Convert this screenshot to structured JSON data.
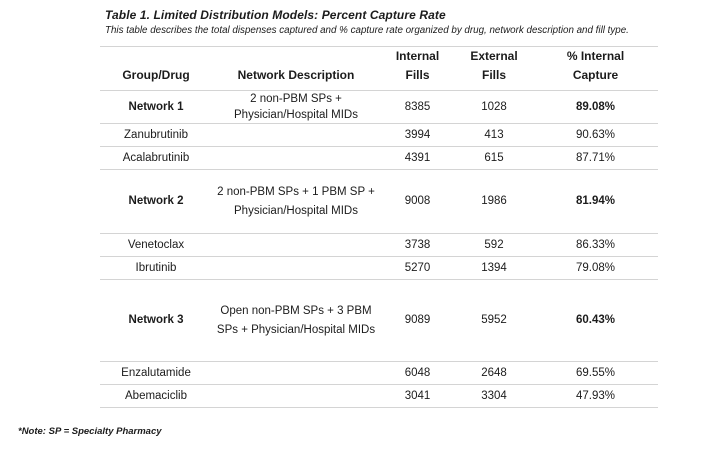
{
  "title": "Table 1. Limited Distribution Models: Percent Capture Rate",
  "subtitle": "This table describes the total dispenses captured and % capture rate organized by drug, network description and fill type.",
  "footnote": "*Note: SP = Specialty Pharmacy",
  "colors": {
    "background": "#ffffff",
    "text": "#1c1c1c",
    "rule_lines": "#d4d4d4"
  },
  "table": {
    "headers": {
      "group": "Group/Drug",
      "description": "Network Description",
      "internal": "Internal\nFills",
      "external": "External\nFills",
      "capture": "% Internal\nCapture"
    },
    "rows": [
      {
        "type": "network",
        "group": "Network 1",
        "description": "2 non-PBM SPs +\nPhysician/Hospital MIDs",
        "internal": "8385",
        "external": "1028",
        "capture": "89.08%"
      },
      {
        "type": "drug",
        "group": "Zanubrutinib",
        "description": "",
        "internal": "3994",
        "external": "413",
        "capture": "90.63%"
      },
      {
        "type": "drug",
        "group": "Acalabrutinib",
        "description": "",
        "internal": "4391",
        "external": "615",
        "capture": "87.71%"
      },
      {
        "type": "network",
        "group": "Network 2",
        "description": "2 non-PBM SPs + 1 PBM SP +\nPhysician/Hospital MIDs",
        "internal": "9008",
        "external": "1986",
        "capture": "81.94%"
      },
      {
        "type": "drug",
        "group": "Venetoclax",
        "description": "",
        "internal": "3738",
        "external": "592",
        "capture": "86.33%"
      },
      {
        "type": "drug",
        "group": "Ibrutinib",
        "description": "",
        "internal": "5270",
        "external": "1394",
        "capture": "79.08%"
      },
      {
        "type": "network",
        "group": "Network 3",
        "description": "Open non-PBM SPs + 3 PBM\nSPs + Physician/Hospital MIDs",
        "internal": "9089",
        "external": "5952",
        "capture": "60.43%"
      },
      {
        "type": "drug",
        "group": "Enzalutamide",
        "description": "",
        "internal": "6048",
        "external": "2648",
        "capture": "69.55%"
      },
      {
        "type": "drug",
        "group": "Abemaciclib",
        "description": "",
        "internal": "3041",
        "external": "3304",
        "capture": "47.93%"
      }
    ]
  }
}
